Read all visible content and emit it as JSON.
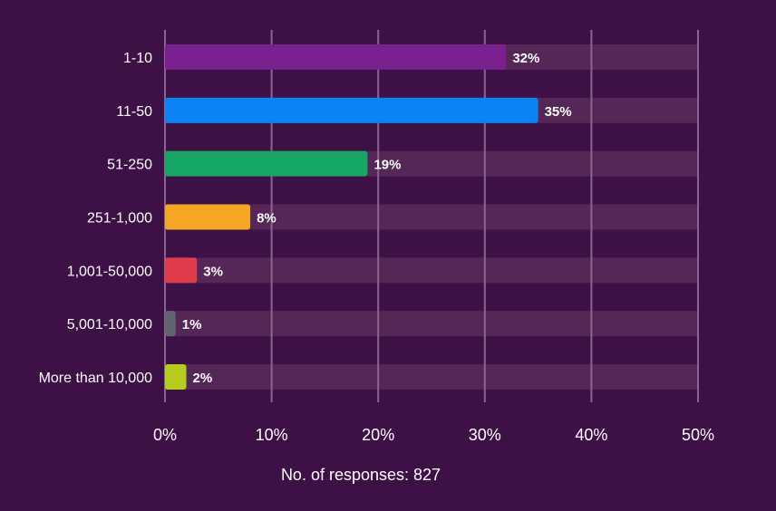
{
  "chart_data": {
    "type": "bar",
    "orientation": "horizontal",
    "categories": [
      "1-10",
      "11-50",
      "51-250",
      "251-1,000",
      "1,001-50,000",
      "5,001-10,000",
      "More than 10,000"
    ],
    "values": [
      32,
      35,
      19,
      8,
      3,
      1,
      2
    ],
    "value_labels": [
      "32%",
      "35%",
      "19%",
      "8%",
      "3%",
      "1%",
      "2%"
    ],
    "colors": [
      "#7b2090",
      "#0a84f5",
      "#16a665",
      "#f5a623",
      "#e03c4c",
      "#5f6670",
      "#b5cd1c"
    ],
    "xlim": [
      0,
      50
    ],
    "xticks": [
      0,
      10,
      20,
      30,
      40,
      50
    ],
    "xtick_labels": [
      "0%",
      "10%",
      "20%",
      "30%",
      "40%",
      "50%"
    ],
    "grid": true,
    "track_color": "#542756",
    "grid_color": "#8c6490"
  },
  "footer": {
    "label": "No. of responses: 827"
  },
  "colors": {
    "background": "#3d1145",
    "text": "#ffffff"
  }
}
